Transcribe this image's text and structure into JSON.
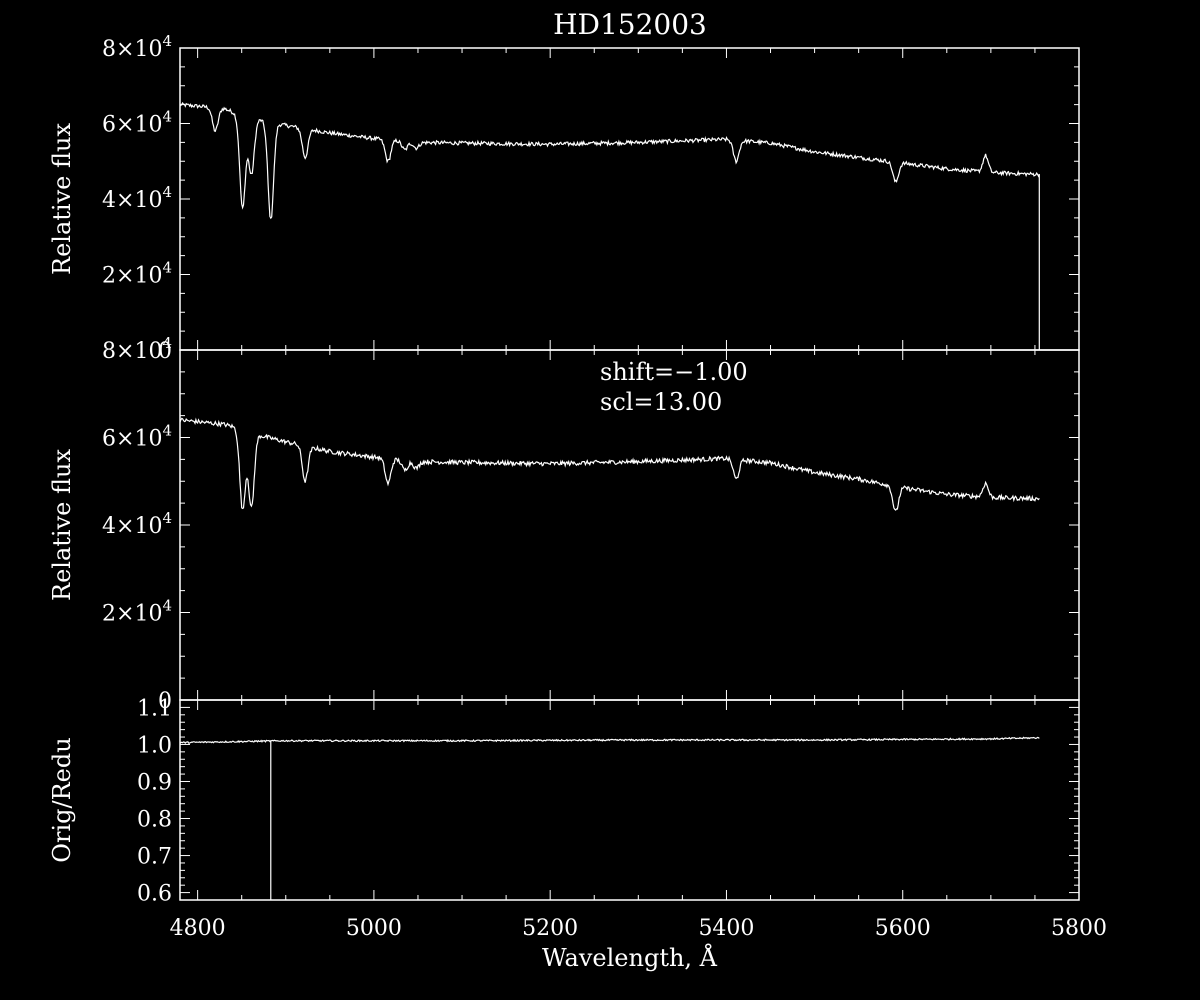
{
  "title": "HD152003",
  "colors": {
    "background": "#000000",
    "foreground": "#ffffff"
  },
  "chart_data": [
    {
      "type": "line",
      "panel": "top",
      "title": "HD152003",
      "ylabel": "Relative flux",
      "ylim": [
        0,
        80000
      ],
      "xlim": [
        4780,
        5800
      ],
      "yticks": [
        {
          "value": 0,
          "mant": "0",
          "exp": ""
        },
        {
          "value": 20000,
          "mant": "2×10",
          "exp": "4"
        },
        {
          "value": 40000,
          "mant": "4×10",
          "exp": "4"
        },
        {
          "value": 60000,
          "mant": "6×10",
          "exp": "4"
        },
        {
          "value": 80000,
          "mant": "8×10",
          "exp": "4"
        }
      ],
      "series": [
        {
          "continuum": [
            [
              4780,
              65000
            ],
            [
              4830,
              64000
            ],
            [
              4850,
              62000
            ],
            [
              4870,
              61000
            ],
            [
              4900,
              59500
            ],
            [
              4950,
              57500
            ],
            [
              5000,
              56000
            ],
            [
              5050,
              55000
            ],
            [
              5100,
              54800
            ],
            [
              5200,
              54500
            ],
            [
              5300,
              55000
            ],
            [
              5400,
              55800
            ],
            [
              5450,
              54800
            ],
            [
              5500,
              52500
            ],
            [
              5550,
              51000
            ],
            [
              5600,
              49500
            ],
            [
              5650,
              48000
            ],
            [
              5700,
              47000
            ],
            [
              5755,
              46500
            ]
          ],
          "lines": [
            [
              4820,
              58000
            ],
            [
              4851,
              37500
            ],
            [
              4861,
              46500
            ],
            [
              4883,
              34500
            ],
            [
              4922,
              51000
            ],
            [
              5016,
              50000
            ],
            [
              5035,
              53000
            ],
            [
              5048,
              53500
            ],
            [
              5411,
              50000
            ],
            [
              5592,
              44500
            ]
          ],
          "emission": [
            [
              5694,
              51500
            ]
          ],
          "drop": [
            5755,
            0
          ]
        }
      ]
    },
    {
      "type": "line",
      "panel": "middle",
      "ylabel": "Relative flux",
      "ylim": [
        0,
        80000
      ],
      "xlim": [
        4780,
        5800
      ],
      "annotations": [
        "shift=−1.00",
        "scl=13.00"
      ],
      "yticks": [
        {
          "value": 0,
          "mant": "0",
          "exp": ""
        },
        {
          "value": 20000,
          "mant": "2×10",
          "exp": "4"
        },
        {
          "value": 40000,
          "mant": "4×10",
          "exp": "4"
        },
        {
          "value": 60000,
          "mant": "6×10",
          "exp": "4"
        },
        {
          "value": 80000,
          "mant": "8×10",
          "exp": "4"
        }
      ],
      "series": [
        {
          "continuum": [
            [
              4780,
              64000
            ],
            [
              4830,
              63000
            ],
            [
              4850,
              62000
            ],
            [
              4870,
              60500
            ],
            [
              4900,
              59000
            ],
            [
              4950,
              56800
            ],
            [
              5000,
              55500
            ],
            [
              5050,
              54500
            ],
            [
              5100,
              54300
            ],
            [
              5200,
              54000
            ],
            [
              5300,
              54500
            ],
            [
              5400,
              55200
            ],
            [
              5450,
              54200
            ],
            [
              5500,
              52000
            ],
            [
              5550,
              50500
            ],
            [
              5600,
              48500
            ],
            [
              5650,
              47000
            ],
            [
              5700,
              46300
            ],
            [
              5755,
              46000
            ]
          ],
          "lines": [
            [
              4851,
              43500
            ],
            [
              4861,
              44000
            ],
            [
              4922,
              50000
            ],
            [
              5016,
              49500
            ],
            [
              5035,
              52500
            ],
            [
              5048,
              53000
            ],
            [
              5411,
              50500
            ],
            [
              5592,
              43000
            ]
          ],
          "emission": [
            [
              5694,
              49500
            ]
          ]
        }
      ]
    },
    {
      "type": "line",
      "panel": "bottom",
      "ylabel": "Orig/Redu",
      "ylim": [
        0.58,
        1.12
      ],
      "xlim": [
        4780,
        5800
      ],
      "xlabel": "Wavelength, Å",
      "xticks": [
        {
          "value": 4800,
          "label": "4800"
        },
        {
          "value": 5000,
          "label": "5000"
        },
        {
          "value": 5200,
          "label": "5200"
        },
        {
          "value": 5400,
          "label": "5400"
        },
        {
          "value": 5600,
          "label": "5600"
        },
        {
          "value": 5800,
          "label": "5800"
        }
      ],
      "yticks": [
        {
          "value": 0.6,
          "label": "0.6"
        },
        {
          "value": 0.7,
          "label": "0.7"
        },
        {
          "value": 0.8,
          "label": "0.8"
        },
        {
          "value": 0.9,
          "label": "0.9"
        },
        {
          "value": 1.0,
          "label": "1.0"
        },
        {
          "value": 1.1,
          "label": "1.1"
        }
      ],
      "series": [
        {
          "continuum": [
            [
              4780,
              1.005
            ],
            [
              4900,
              1.01
            ],
            [
              5100,
              1.01
            ],
            [
              5300,
              1.012
            ],
            [
              5500,
              1.012
            ],
            [
              5700,
              1.015
            ],
            [
              5755,
              1.018
            ]
          ],
          "spike": [
            4883,
            0.58
          ]
        }
      ]
    }
  ]
}
